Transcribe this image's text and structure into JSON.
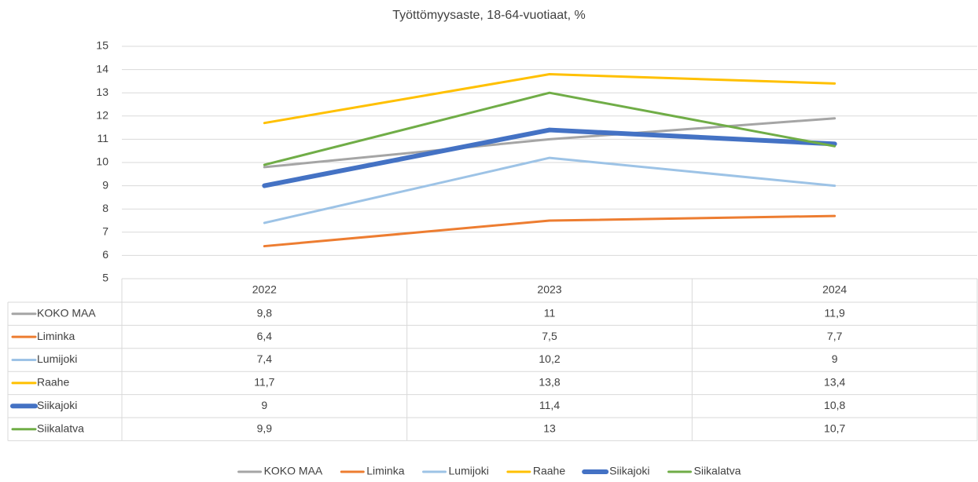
{
  "chart_data": {
    "type": "line",
    "title": "Työttömyysaste, 18-64-vuotiaat, %",
    "categories": [
      "2022",
      "2023",
      "2024"
    ],
    "ylim": [
      5,
      15
    ],
    "yticks": [
      5,
      6,
      7,
      8,
      9,
      10,
      11,
      12,
      13,
      14,
      15
    ],
    "grid": true,
    "legend": "bottom",
    "data_table": true,
    "series": [
      {
        "name": "KOKO MAA",
        "color": "#a5a5a5",
        "line_width": 3,
        "values": [
          9.8,
          11,
          11.9
        ],
        "value_labels": [
          "9,8",
          "11",
          "11,9"
        ]
      },
      {
        "name": "Liminka",
        "color": "#ed7d31",
        "line_width": 3,
        "values": [
          6.4,
          7.5,
          7.7
        ],
        "value_labels": [
          "6,4",
          "7,5",
          "7,7"
        ]
      },
      {
        "name": "Lumijoki",
        "color": "#9dc3e6",
        "line_width": 3,
        "values": [
          7.4,
          10.2,
          9
        ],
        "value_labels": [
          "7,4",
          "10,2",
          "9"
        ]
      },
      {
        "name": "Raahe",
        "color": "#ffc000",
        "line_width": 3,
        "values": [
          11.7,
          13.8,
          13.4
        ],
        "value_labels": [
          "11,7",
          "13,8",
          "13,4"
        ]
      },
      {
        "name": "Siikajoki",
        "color": "#4472c4",
        "line_width": 6,
        "values": [
          9,
          11.4,
          10.8
        ],
        "value_labels": [
          "9",
          "11,4",
          "10,8"
        ]
      },
      {
        "name": "Siikalatva",
        "color": "#70ad47",
        "line_width": 3,
        "values": [
          9.9,
          13,
          10.7
        ],
        "value_labels": [
          "9,9",
          "13",
          "10,7"
        ]
      }
    ]
  }
}
